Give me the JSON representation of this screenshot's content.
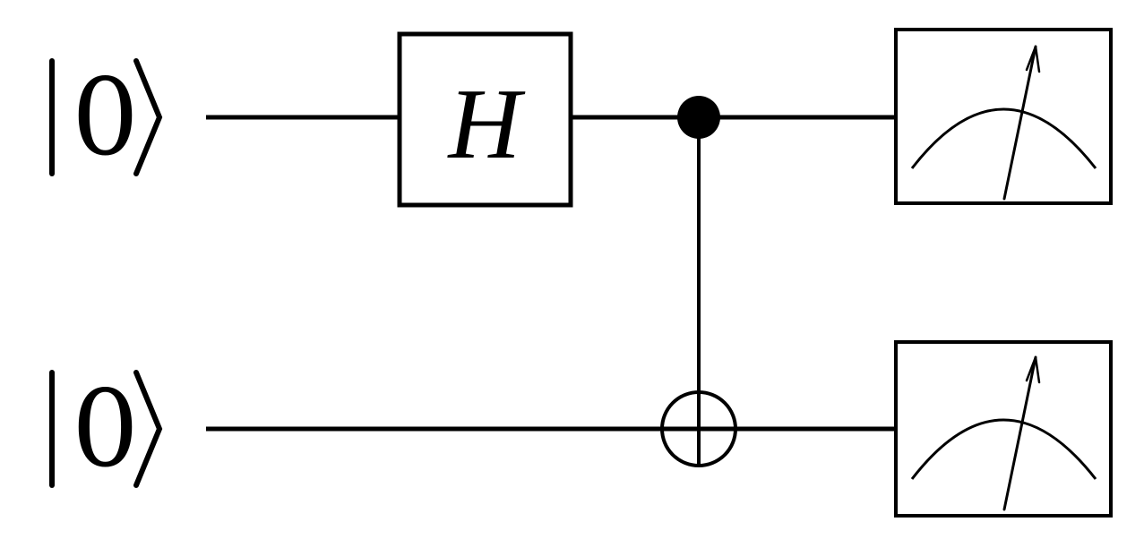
{
  "circuit": {
    "qubits": [
      {
        "initial_state": "0"
      },
      {
        "initial_state": "0"
      }
    ],
    "gates": [
      {
        "type": "single",
        "label": "H",
        "target": 0
      },
      {
        "type": "cnot",
        "control": 0,
        "target": 1
      },
      {
        "type": "measure",
        "target": 0
      },
      {
        "type": "measure",
        "target": 1
      }
    ],
    "colors": {
      "ink": "#000000",
      "background": "#ffffff"
    }
  }
}
